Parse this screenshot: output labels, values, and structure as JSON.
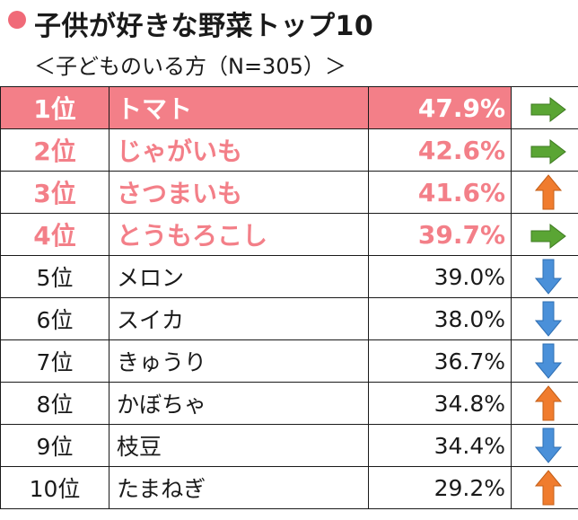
{
  "header": {
    "title": "子供が好きな野菜トップ10",
    "subtitle": "＜子どものいる方（N=305）＞"
  },
  "colors": {
    "accent_pink": "#f37f88",
    "title_dot": "#f06a78",
    "arrow_right_green": "#5aa534",
    "arrow_up_orange": "#f07c2e",
    "arrow_down_blue": "#4a90d9"
  },
  "rows": [
    {
      "rank": "1位",
      "name": "トマト",
      "pct": "47.9%",
      "trend": "right",
      "icon": "arrow-right-icon"
    },
    {
      "rank": "2位",
      "name": "じゃがいも",
      "pct": "42.6%",
      "trend": "right",
      "icon": "arrow-right-icon"
    },
    {
      "rank": "3位",
      "name": "さつまいも",
      "pct": "41.6%",
      "trend": "up",
      "icon": "arrow-up-icon"
    },
    {
      "rank": "4位",
      "name": "とうもろこし",
      "pct": "39.7%",
      "trend": "right",
      "icon": "arrow-right-icon"
    },
    {
      "rank": "5位",
      "name": "メロン",
      "pct": "39.0%",
      "trend": "down",
      "icon": "arrow-down-icon"
    },
    {
      "rank": "6位",
      "name": "スイカ",
      "pct": "38.0%",
      "trend": "down",
      "icon": "arrow-down-icon"
    },
    {
      "rank": "7位",
      "name": "きゅうり",
      "pct": "36.7%",
      "trend": "down",
      "icon": "arrow-down-icon"
    },
    {
      "rank": "8位",
      "name": "かぼちゃ",
      "pct": "34.8%",
      "trend": "up",
      "icon": "arrow-up-icon"
    },
    {
      "rank": "9位",
      "name": "枝豆",
      "pct": "34.4%",
      "trend": "down",
      "icon": "arrow-down-icon"
    },
    {
      "rank": "10位",
      "name": "たまねぎ",
      "pct": "29.2%",
      "trend": "up",
      "icon": "arrow-up-icon"
    }
  ]
}
